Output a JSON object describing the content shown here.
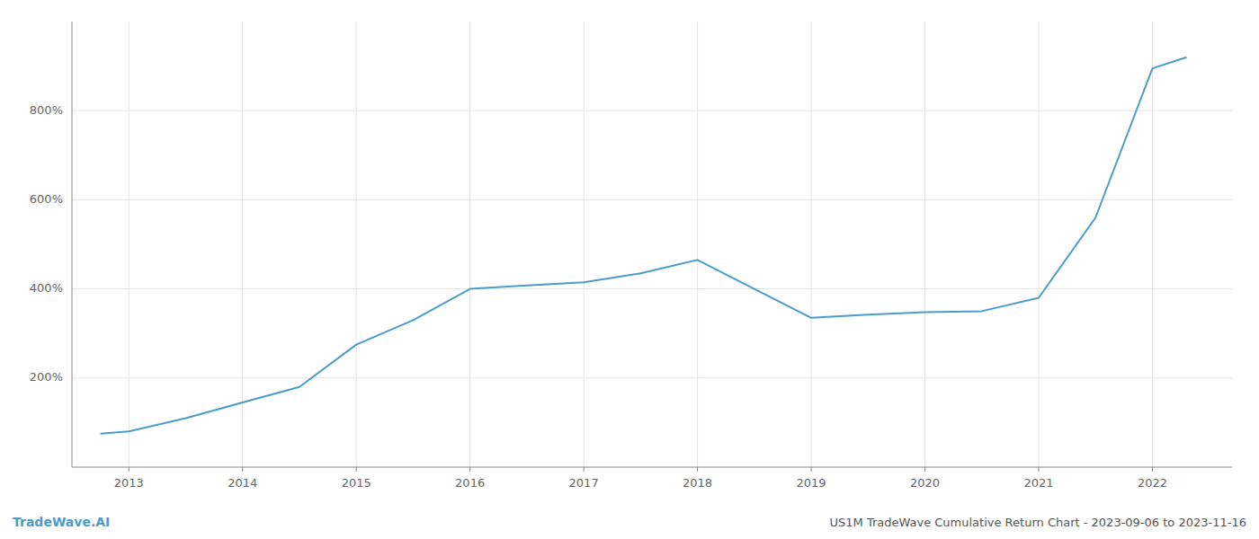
{
  "chart_data": {
    "type": "line",
    "x": [
      2012.75,
      2013.0,
      2013.5,
      2014.0,
      2014.5,
      2015.0,
      2015.5,
      2016.0,
      2016.5,
      2017.0,
      2017.5,
      2018.0,
      2018.5,
      2019.0,
      2019.5,
      2020.0,
      2020.5,
      2021.0,
      2021.5,
      2022.0,
      2022.3
    ],
    "values": [
      75,
      80,
      110,
      145,
      180,
      275,
      330,
      400,
      408,
      415,
      435,
      465,
      400,
      335,
      342,
      348,
      350,
      380,
      560,
      895,
      920
    ],
    "color": "#4a9cc9",
    "xlim": [
      2012.5,
      2022.7
    ],
    "xticks": [
      2013,
      2014,
      2015,
      2016,
      2017,
      2018,
      2019,
      2020,
      2021,
      2022
    ],
    "ylim": [
      0,
      1000
    ],
    "yticks": [
      {
        "value": 200,
        "label": "200%"
      },
      {
        "value": 400,
        "label": "400%"
      },
      {
        "value": 600,
        "label": "600%"
      },
      {
        "value": 800,
        "label": "800%"
      }
    ],
    "grid": true,
    "annotations": [
      "TradeWave.AI",
      "US1M TradeWave Cumulative Return Chart - 2023-09-06 to 2023-11-16"
    ]
  }
}
